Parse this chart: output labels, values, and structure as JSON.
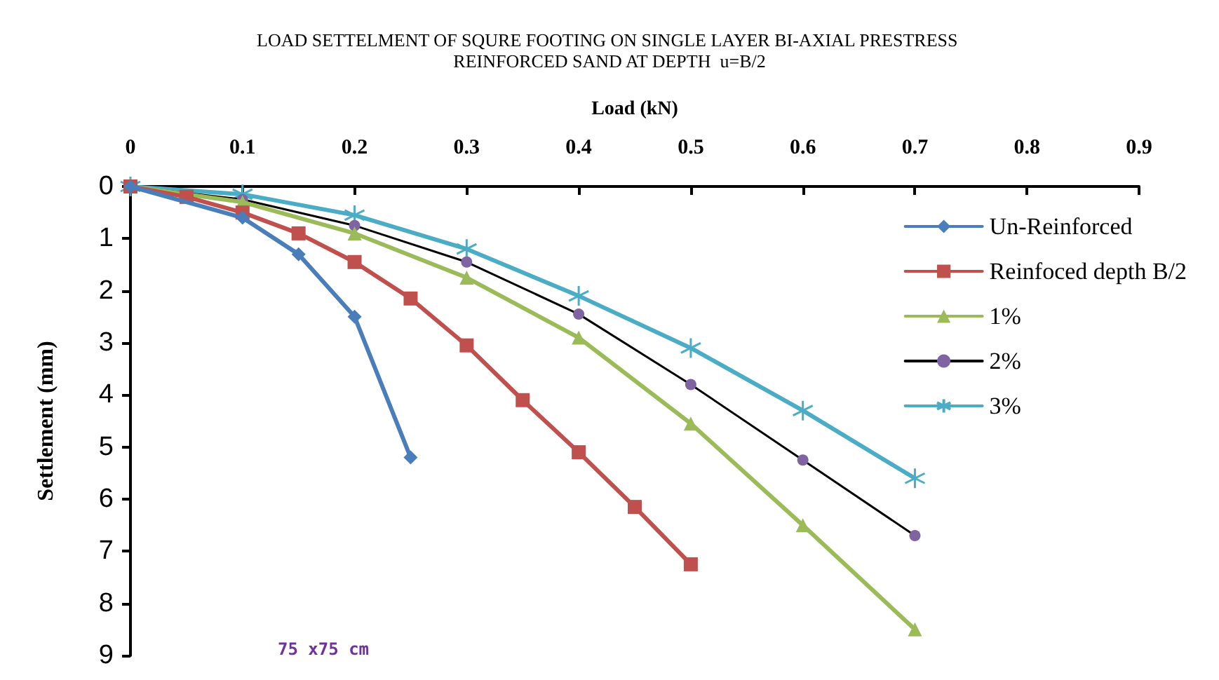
{
  "chart_data": {
    "type": "line",
    "title": "LOAD SETTELMENT OF SQURE FOOTING ON SINGLE LAYER BI-AXIAL PRESTRESS REINFORCED SAND AT DEPTH  u=B/2",
    "xlabel": "Load (kN)",
    "ylabel": "Settlement (mm)",
    "annotations": [
      "75 x75 cm"
    ],
    "xlim": [
      0,
      0.9
    ],
    "xticks": [
      0,
      0.1,
      0.2,
      0.3,
      0.4,
      0.5,
      0.6,
      0.7,
      0.8,
      0.9
    ],
    "ylim": [
      9,
      0
    ],
    "yticks": [
      0,
      1,
      2,
      3,
      4,
      5,
      6,
      7,
      8,
      9
    ],
    "grid": false,
    "legend": "right",
    "series": [
      {
        "name": "Un-Reinforced",
        "color": "#4a7ebb",
        "marker": "diamond",
        "x": [
          0,
          0.1,
          0.15,
          0.2,
          0.25
        ],
        "values": [
          0,
          0.6,
          1.3,
          2.5,
          5.2
        ]
      },
      {
        "name": "Reinfoced depth B/2",
        "color": "#c0504d",
        "marker": "square",
        "x": [
          0,
          0.05,
          0.1,
          0.15,
          0.2,
          0.25,
          0.3,
          0.35,
          0.4,
          0.45,
          0.5
        ],
        "values": [
          0,
          0.2,
          0.5,
          0.9,
          1.45,
          2.15,
          3.05,
          4.1,
          5.1,
          6.15,
          7.25
        ]
      },
      {
        "name": "1%",
        "color": "#9bbb59",
        "marker": "triangle",
        "x": [
          0,
          0.1,
          0.2,
          0.3,
          0.4,
          0.5,
          0.6,
          0.7
        ],
        "values": [
          0,
          0.3,
          0.9,
          1.75,
          2.9,
          4.55,
          6.5,
          8.5
        ]
      },
      {
        "name": "2%",
        "color": "#000000",
        "marker": "circle",
        "x": [
          0,
          0.1,
          0.2,
          0.3,
          0.4,
          0.5,
          0.6,
          0.7
        ],
        "values": [
          0,
          0.25,
          0.75,
          1.45,
          2.45,
          3.8,
          5.25,
          6.7
        ]
      },
      {
        "name": "3%",
        "color": "#4bacc6",
        "marker": "cross",
        "x": [
          0,
          0.1,
          0.2,
          0.3,
          0.4,
          0.5,
          0.6,
          0.7
        ],
        "values": [
          0,
          0.15,
          0.55,
          1.2,
          2.1,
          3.1,
          4.3,
          5.6
        ]
      }
    ]
  }
}
